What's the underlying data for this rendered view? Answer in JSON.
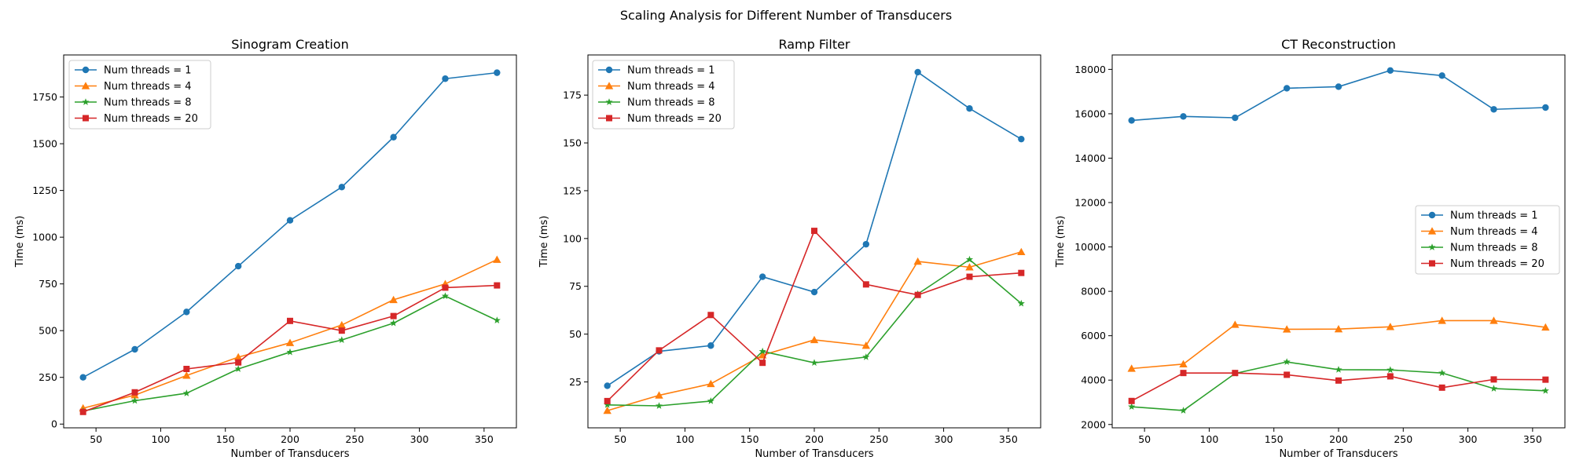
{
  "figure": {
    "title": "Scaling Analysis for Different Number of Transducers"
  },
  "chart_data": [
    {
      "type": "line",
      "title": "Sinogram Creation",
      "xlabel": "Number of Transducers",
      "ylabel": "Time (ms)",
      "x": [
        40,
        80,
        120,
        160,
        200,
        240,
        280,
        320,
        360
      ],
      "xlim": [
        25,
        375
      ],
      "ylim": [
        -20,
        1975
      ],
      "xticks": [
        50,
        100,
        150,
        200,
        250,
        300,
        350
      ],
      "yticks": [
        0,
        250,
        500,
        750,
        1000,
        1250,
        1500,
        1750
      ],
      "legend": "top-left",
      "grid": false,
      "series": [
        {
          "name": "Num threads = 1",
          "color": "#1f77b4",
          "marker": "circle",
          "values": [
            250,
            400,
            600,
            845,
            1090,
            1268,
            1535,
            1848,
            1880
          ]
        },
        {
          "name": "Num threads = 4",
          "color": "#ff7f0e",
          "marker": "triangle",
          "values": [
            85,
            155,
            260,
            358,
            435,
            530,
            665,
            750,
            880
          ]
        },
        {
          "name": "Num threads = 8",
          "color": "#2ca02c",
          "marker": "star",
          "values": [
            70,
            125,
            165,
            295,
            385,
            450,
            540,
            685,
            555
          ]
        },
        {
          "name": "Num threads = 20",
          "color": "#d62728",
          "marker": "square",
          "values": [
            65,
            170,
            295,
            330,
            552,
            500,
            578,
            730,
            742
          ]
        }
      ]
    },
    {
      "type": "line",
      "title": "Ramp Filter",
      "xlabel": "Number of Transducers",
      "ylabel": "Time (ms)",
      "x": [
        40,
        80,
        120,
        160,
        200,
        240,
        280,
        320,
        360
      ],
      "xlim": [
        25,
        375
      ],
      "ylim": [
        1,
        196
      ],
      "xticks": [
        50,
        100,
        150,
        200,
        250,
        300,
        350
      ],
      "yticks": [
        25,
        50,
        75,
        100,
        125,
        150,
        175
      ],
      "legend": "top-left",
      "grid": false,
      "series": [
        {
          "name": "Num threads = 1",
          "color": "#1f77b4",
          "marker": "circle",
          "values": [
            23,
            41,
            44,
            80,
            72,
            97,
            187,
            168,
            152
          ]
        },
        {
          "name": "Num threads = 4",
          "color": "#ff7f0e",
          "marker": "triangle",
          "values": [
            10,
            18,
            24,
            39,
            47,
            44,
            88,
            85,
            93
          ]
        },
        {
          "name": "Num threads = 8",
          "color": "#2ca02c",
          "marker": "star",
          "values": [
            13,
            12.5,
            15,
            41,
            35,
            38,
            71,
            89,
            66
          ]
        },
        {
          "name": "Num threads = 20",
          "color": "#d62728",
          "marker": "square",
          "values": [
            15,
            41.5,
            60,
            35,
            104,
            76,
            70.5,
            80,
            82
          ]
        }
      ]
    },
    {
      "type": "line",
      "title": "CT Reconstruction",
      "xlabel": "Number of Transducers",
      "ylabel": "Time (ms)",
      "x": [
        40,
        80,
        120,
        160,
        200,
        240,
        280,
        320,
        360
      ],
      "xlim": [
        25,
        375
      ],
      "ylim": [
        1850,
        18650
      ],
      "xticks": [
        50,
        100,
        150,
        200,
        250,
        300,
        350
      ],
      "yticks": [
        2000,
        4000,
        6000,
        8000,
        10000,
        12000,
        14000,
        16000,
        18000
      ],
      "legend": "center-right",
      "grid": false,
      "series": [
        {
          "name": "Num threads = 1",
          "color": "#1f77b4",
          "marker": "circle",
          "values": [
            15700,
            15880,
            15820,
            17150,
            17220,
            17950,
            17720,
            16200,
            16280
          ]
        },
        {
          "name": "Num threads = 4",
          "color": "#ff7f0e",
          "marker": "triangle",
          "values": [
            4520,
            4720,
            6500,
            6290,
            6300,
            6400,
            6680,
            6680,
            6380
          ]
        },
        {
          "name": "Num threads = 8",
          "color": "#2ca02c",
          "marker": "star",
          "values": [
            2800,
            2630,
            4300,
            4820,
            4470,
            4460,
            4320,
            3620,
            3520
          ]
        },
        {
          "name": "Num threads = 20",
          "color": "#d62728",
          "marker": "square",
          "values": [
            3060,
            4320,
            4320,
            4240,
            3980,
            4170,
            3660,
            4030,
            4020
          ]
        }
      ]
    }
  ]
}
